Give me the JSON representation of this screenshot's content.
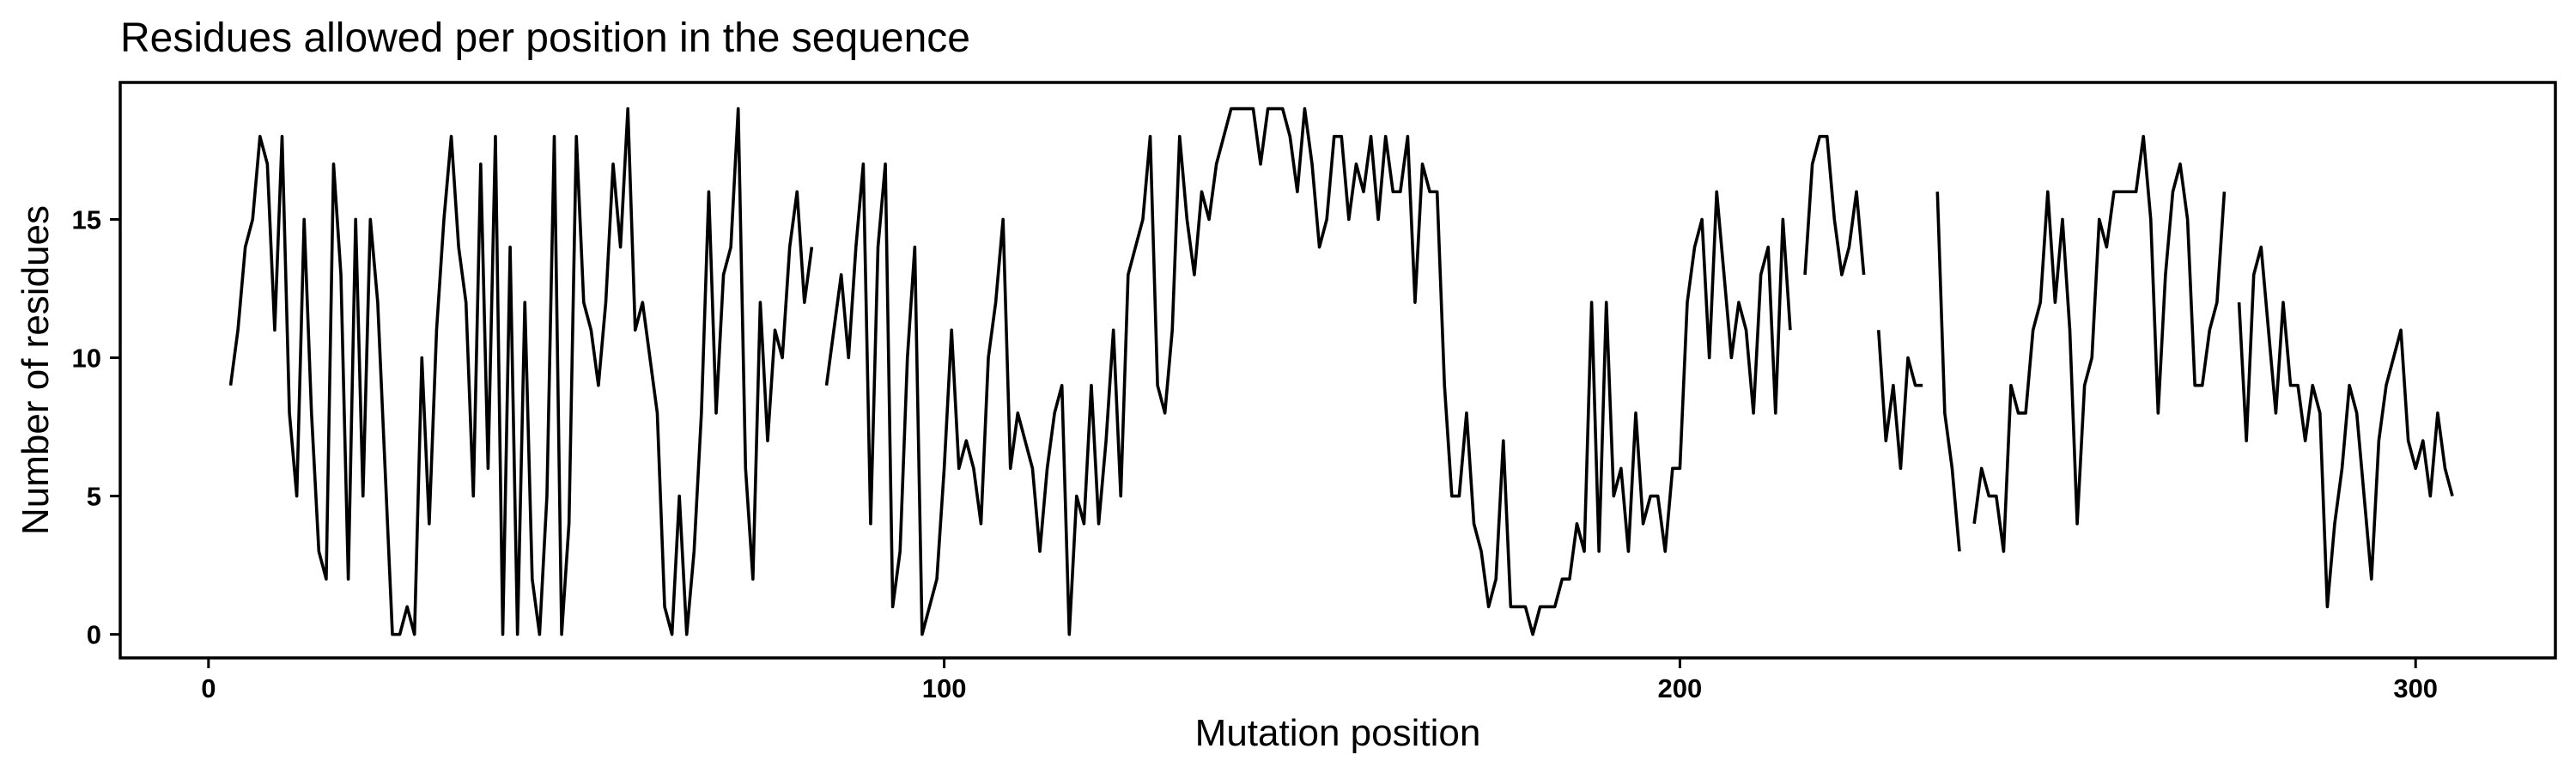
{
  "chart_data": {
    "type": "line",
    "title": "Residues allowed per position in the sequence",
    "xlabel": "Mutation position",
    "ylabel": "Number of residues",
    "xlim": [
      -12,
      319
    ],
    "ylim": [
      -0.85,
      19.95
    ],
    "x_ticks": [
      0,
      100,
      200,
      300
    ],
    "y_ticks": [
      0,
      5,
      10,
      15
    ],
    "grid": false,
    "legend": "none",
    "line_color": "#000000",
    "series": [
      {
        "x_start": 3,
        "values": [
          9,
          11,
          14,
          15,
          18,
          17,
          11,
          18,
          8,
          5,
          15,
          8,
          3,
          2,
          17,
          13,
          2,
          15,
          5,
          15,
          12,
          6,
          0,
          0,
          1,
          0,
          10,
          4,
          11,
          15,
          18,
          14,
          12,
          5,
          17,
          6,
          18,
          0,
          14,
          0,
          12,
          2,
          0,
          5,
          18,
          0,
          4,
          18,
          12,
          11,
          9,
          12,
          17,
          14,
          19,
          11,
          12,
          10,
          8,
          1,
          0,
          5,
          0,
          3,
          8,
          16,
          8,
          13,
          14,
          19,
          6,
          2,
          12,
          7,
          11,
          10,
          14,
          16,
          12,
          14,
          null,
          9,
          11,
          13,
          10,
          14,
          17,
          4,
          14,
          17,
          1,
          3,
          10,
          14,
          0,
          1,
          2,
          6,
          11,
          6,
          7,
          6,
          4,
          10,
          12,
          15,
          6,
          8,
          7,
          6,
          3,
          6,
          8,
          9,
          0,
          5,
          4,
          9,
          4,
          7,
          11,
          5,
          13,
          14,
          15,
          18,
          9,
          8,
          11,
          18,
          15,
          13,
          16,
          15,
          17,
          18,
          19,
          19,
          19,
          19,
          17,
          19,
          19,
          19,
          18,
          16,
          19,
          17,
          14,
          15,
          18,
          18,
          15,
          17,
          16,
          18,
          15,
          18,
          16,
          16,
          18,
          12,
          17,
          16,
          16,
          9,
          5,
          5,
          8,
          4,
          3,
          1,
          2,
          7,
          1,
          1,
          1,
          0,
          1,
          1,
          1,
          2,
          2,
          4,
          3,
          12,
          3,
          12,
          5,
          6,
          3,
          8,
          4,
          5,
          5,
          3,
          6,
          6,
          12,
          14,
          15,
          10,
          16,
          13,
          10,
          12,
          11,
          8,
          13,
          14,
          8,
          15,
          11,
          null,
          13,
          17,
          18,
          18,
          15,
          13,
          14,
          16,
          13,
          null,
          11,
          7,
          9,
          6,
          10,
          9,
          9,
          null,
          16,
          8,
          6,
          3,
          null,
          4,
          6,
          5,
          5,
          3,
          9,
          8,
          8,
          11,
          12,
          16,
          12,
          15,
          11,
          4,
          9,
          10,
          15,
          14,
          16,
          16,
          16,
          16,
          18,
          15,
          8,
          13,
          16,
          17,
          15,
          9,
          9,
          11,
          12,
          16,
          null,
          12,
          7,
          13,
          14,
          11,
          8,
          12,
          9,
          9,
          7,
          9,
          8,
          1,
          4,
          6,
          9,
          8,
          5,
          2,
          7,
          9,
          10,
          11,
          7,
          6,
          7,
          5,
          8,
          6,
          5
        ]
      }
    ]
  }
}
